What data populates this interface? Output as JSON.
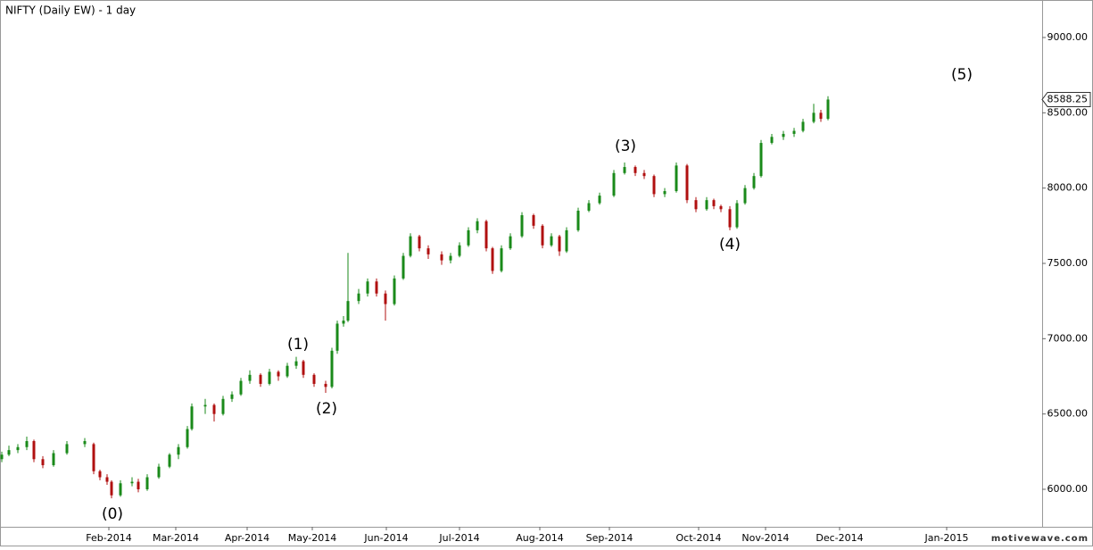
{
  "chart_data": {
    "type": "candlestick",
    "title": "NIFTY (Daily EW) - 1 day",
    "x": [
      0.5,
      2.5,
      5,
      7.5,
      9.5,
      12,
      15,
      18.75,
      23.75,
      26.25,
      28,
      30,
      31.25,
      33.75,
      37,
      38.75,
      41.25,
      44.5,
      47.5,
      50,
      52.5,
      53.75,
      57.5,
      60,
      62.5,
      65,
      67.5,
      70,
      73,
      75.5,
      78,
      80.5,
      83,
      85,
      88,
      91.25,
      93,
      94.5,
      96.25,
      97.5,
      100.5,
      103,
      105.5,
      108,
      110.5,
      113,
      115,
      117.5,
      120,
      123.75,
      126.25,
      128.75,
      131.25,
      133.75,
      136.25,
      138,
      140.5,
      143,
      146.25,
      149.5,
      152,
      154.5,
      156.75,
      158.75,
      162,
      165,
      168,
      172,
      175,
      178,
      180.5,
      183.25,
      186.25,
      189.5,
      192.5,
      195,
      198,
      200,
      202,
      204.5,
      206.5,
      208.75,
      211.25,
      213.25,
      216.25,
      219.5,
      222.5,
      225,
      228,
      230,
      232
    ],
    "ohlc": [
      [
        6200,
        6250,
        6180,
        6230
      ],
      [
        6230,
        6290,
        6220,
        6260
      ],
      [
        6260,
        6300,
        6240,
        6280
      ],
      [
        6280,
        6350,
        6260,
        6320
      ],
      [
        6320,
        6330,
        6180,
        6200
      ],
      [
        6200,
        6220,
        6140,
        6160
      ],
      [
        6160,
        6260,
        6150,
        6240
      ],
      [
        6240,
        6320,
        6230,
        6300
      ],
      [
        6300,
        6340,
        6280,
        6320
      ],
      [
        6300,
        6310,
        6100,
        6120
      ],
      [
        6120,
        6130,
        6060,
        6080
      ],
      [
        6080,
        6100,
        6030,
        6050
      ],
      [
        6050,
        6060,
        5940,
        5960
      ],
      [
        5960,
        6060,
        5950,
        6040
      ],
      [
        6040,
        6080,
        6020,
        6050
      ],
      [
        6050,
        6070,
        5980,
        6000
      ],
      [
        6000,
        6100,
        5990,
        6080
      ],
      [
        6080,
        6170,
        6070,
        6150
      ],
      [
        6150,
        6240,
        6140,
        6230
      ],
      [
        6230,
        6300,
        6200,
        6280
      ],
      [
        6280,
        6420,
        6270,
        6400
      ],
      [
        6400,
        6570,
        6390,
        6550
      ],
      [
        6550,
        6600,
        6500,
        6560
      ],
      [
        6560,
        6570,
        6450,
        6500
      ],
      [
        6500,
        6620,
        6490,
        6600
      ],
      [
        6600,
        6650,
        6580,
        6630
      ],
      [
        6630,
        6740,
        6620,
        6720
      ],
      [
        6720,
        6790,
        6700,
        6760
      ],
      [
        6760,
        6770,
        6680,
        6700
      ],
      [
        6700,
        6800,
        6690,
        6780
      ],
      [
        6780,
        6790,
        6720,
        6750
      ],
      [
        6750,
        6840,
        6740,
        6820
      ],
      [
        6820,
        6880,
        6800,
        6850
      ],
      [
        6850,
        6860,
        6740,
        6760
      ],
      [
        6760,
        6770,
        6680,
        6700
      ],
      [
        6700,
        6720,
        6640,
        6680
      ],
      [
        6680,
        6940,
        6670,
        6920
      ],
      [
        6920,
        7120,
        6900,
        7100
      ],
      [
        7100,
        7150,
        7080,
        7120
      ],
      [
        7120,
        7570,
        7110,
        7250
      ],
      [
        7250,
        7330,
        7230,
        7300
      ],
      [
        7300,
        7400,
        7280,
        7380
      ],
      [
        7380,
        7400,
        7280,
        7300
      ],
      [
        7300,
        7320,
        7120,
        7230
      ],
      [
        7230,
        7420,
        7220,
        7400
      ],
      [
        7400,
        7570,
        7390,
        7550
      ],
      [
        7550,
        7700,
        7540,
        7680
      ],
      [
        7680,
        7690,
        7580,
        7600
      ],
      [
        7600,
        7620,
        7530,
        7560
      ],
      [
        7560,
        7580,
        7490,
        7520
      ],
      [
        7520,
        7570,
        7500,
        7550
      ],
      [
        7550,
        7640,
        7540,
        7620
      ],
      [
        7620,
        7740,
        7610,
        7720
      ],
      [
        7720,
        7800,
        7700,
        7780
      ],
      [
        7780,
        7790,
        7580,
        7600
      ],
      [
        7600,
        7610,
        7430,
        7450
      ],
      [
        7450,
        7620,
        7440,
        7600
      ],
      [
        7600,
        7700,
        7590,
        7680
      ],
      [
        7680,
        7840,
        7670,
        7820
      ],
      [
        7820,
        7830,
        7730,
        7750
      ],
      [
        7750,
        7760,
        7600,
        7620
      ],
      [
        7620,
        7700,
        7610,
        7680
      ],
      [
        7680,
        7690,
        7550,
        7580
      ],
      [
        7580,
        7740,
        7570,
        7720
      ],
      [
        7720,
        7870,
        7710,
        7850
      ],
      [
        7850,
        7920,
        7840,
        7900
      ],
      [
        7900,
        7970,
        7890,
        7950
      ],
      [
        7950,
        8120,
        7940,
        8100
      ],
      [
        8100,
        8170,
        8090,
        8140
      ],
      [
        8140,
        8150,
        8080,
        8100
      ],
      [
        8100,
        8120,
        8060,
        8080
      ],
      [
        8080,
        8090,
        7940,
        7960
      ],
      [
        7960,
        8000,
        7940,
        7980
      ],
      [
        7980,
        8170,
        7970,
        8150
      ],
      [
        8150,
        8160,
        7900,
        7920
      ],
      [
        7920,
        7940,
        7840,
        7860
      ],
      [
        7860,
        7940,
        7850,
        7920
      ],
      [
        7920,
        7930,
        7860,
        7880
      ],
      [
        7880,
        7890,
        7840,
        7860
      ],
      [
        7860,
        7880,
        7720,
        7740
      ],
      [
        7740,
        7920,
        7730,
        7900
      ],
      [
        7900,
        8020,
        7890,
        8000
      ],
      [
        8000,
        8100,
        7990,
        8080
      ],
      [
        8080,
        8320,
        8070,
        8300
      ],
      [
        8300,
        8360,
        8290,
        8340
      ],
      [
        8340,
        8380,
        8320,
        8360
      ],
      [
        8360,
        8400,
        8340,
        8380
      ],
      [
        8380,
        8460,
        8370,
        8440
      ],
      [
        8440,
        8560,
        8430,
        8500
      ],
      [
        8500,
        8520,
        8440,
        8460
      ],
      [
        8460,
        8610,
        8450,
        8588.25
      ]
    ],
    "up_color": "#1a8a1a",
    "down_color": "#b01010",
    "xlim": [
      0,
      292
    ],
    "xticks": [
      {
        "value": 30.5,
        "label": "Feb-2014"
      },
      {
        "value": 49.25,
        "label": "Mar-2014"
      },
      {
        "value": 69.25,
        "label": "Apr-2014"
      },
      {
        "value": 87.5,
        "label": "May-2014"
      },
      {
        "value": 108.25,
        "label": "Jun-2014"
      },
      {
        "value": 128.75,
        "label": "Jul-2014"
      },
      {
        "value": 151.25,
        "label": "Aug-2014"
      },
      {
        "value": 170.75,
        "label": "Sep-2014"
      },
      {
        "value": 195.75,
        "label": "Oct-2014"
      },
      {
        "value": 214.5,
        "label": "Nov-2014"
      },
      {
        "value": 235.25,
        "label": "Dec-2014"
      },
      {
        "value": 265.25,
        "label": "Jan-2015"
      }
    ],
    "ylim": [
      5751,
      9249
    ],
    "yticks": [
      {
        "value": 6000,
        "label": "6000.00"
      },
      {
        "value": 6500,
        "label": "6500.00"
      },
      {
        "value": 7000,
        "label": "7000.00"
      },
      {
        "value": 7500,
        "label": "7500.00"
      },
      {
        "value": 8000,
        "label": "8000.00"
      },
      {
        "value": 8500,
        "label": "8500.00"
      },
      {
        "value": 9000,
        "label": "9000.00"
      }
    ],
    "last_price": 8588.25,
    "annotations": [
      "(0)",
      "(1)",
      "(2)",
      "(3)",
      "(4)",
      "(5)"
    ],
    "watermark": "motivewave.com"
  }
}
